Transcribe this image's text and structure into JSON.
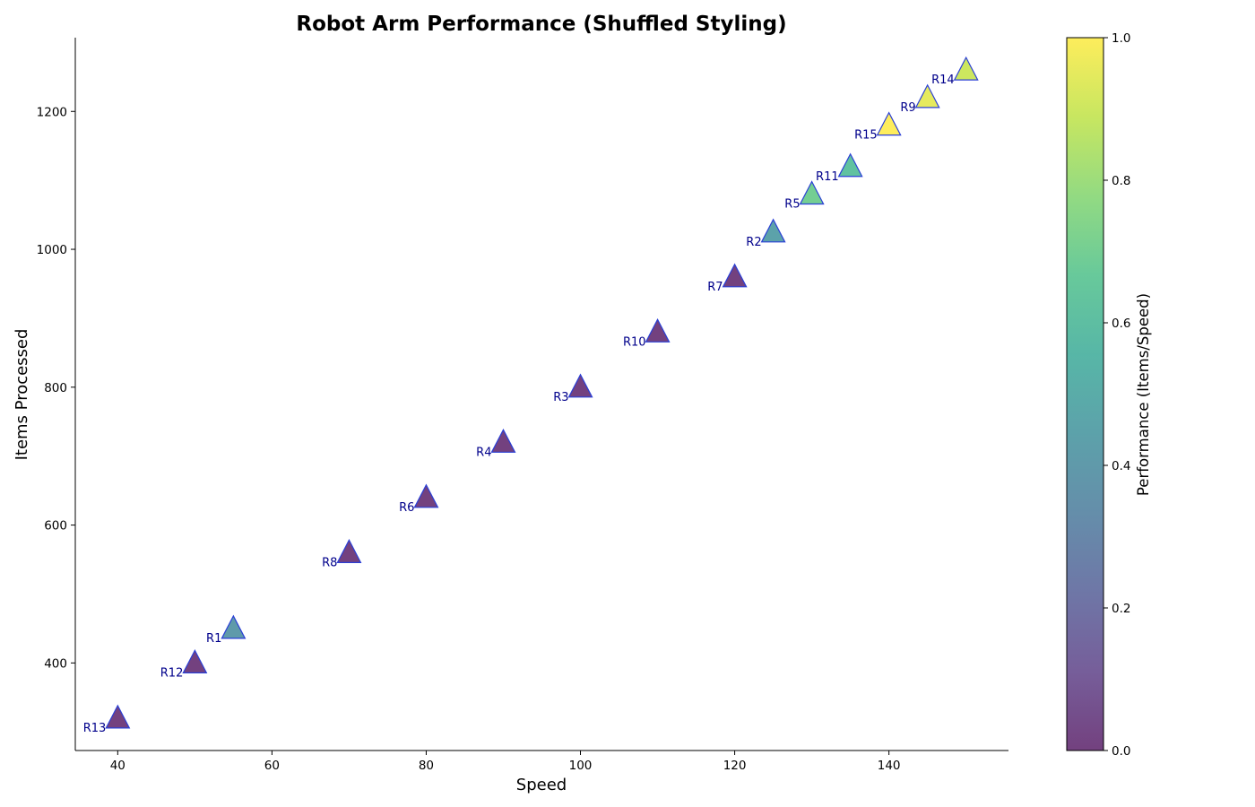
{
  "chart_data": {
    "type": "scatter",
    "title": "Robot Arm Performance (Shuffled Styling)",
    "xlabel": "Speed",
    "ylabel": "Items Processed",
    "xlim": [
      34.5,
      155.5
    ],
    "ylim": [
      273,
      1307
    ],
    "xticks": [
      "40",
      "60",
      "80",
      "100",
      "120",
      "140"
    ],
    "yticks": [
      "400",
      "600",
      "800",
      "1000",
      "1200"
    ],
    "marker": "triangle",
    "grid": false,
    "points": [
      {
        "label": "R1",
        "x": 55,
        "y": 450,
        "color_value": 0.4
      },
      {
        "label": "R2",
        "x": 125,
        "y": 1025,
        "color_value": 0.45
      },
      {
        "label": "R3",
        "x": 100,
        "y": 800,
        "color_value": 0.0
      },
      {
        "label": "R4",
        "x": 90,
        "y": 720,
        "color_value": 0.0
      },
      {
        "label": "R5",
        "x": 130,
        "y": 1080,
        "color_value": 0.7
      },
      {
        "label": "R6",
        "x": 80,
        "y": 640,
        "color_value": 0.0
      },
      {
        "label": "R7",
        "x": 120,
        "y": 960,
        "color_value": 0.0
      },
      {
        "label": "R8",
        "x": 70,
        "y": 560,
        "color_value": 0.0
      },
      {
        "label": "R9",
        "x": 145,
        "y": 1220,
        "color_value": 0.95
      },
      {
        "label": "R10",
        "x": 110,
        "y": 880,
        "color_value": 0.0
      },
      {
        "label": "R11",
        "x": 135,
        "y": 1120,
        "color_value": 0.62
      },
      {
        "label": "R12",
        "x": 50,
        "y": 400,
        "color_value": 0.0
      },
      {
        "label": "R13",
        "x": 40,
        "y": 320,
        "color_value": 0.0
      },
      {
        "label": "R14",
        "x": 150,
        "y": 1260,
        "color_value": 0.9
      },
      {
        "label": "R15",
        "x": 140,
        "y": 1180,
        "color_value": 1.0
      }
    ],
    "colorbar": {
      "label": "Performance (Items/Speed)",
      "range": [
        0.0,
        1.0
      ],
      "ticks": [
        "0.0",
        "0.2",
        "0.4",
        "0.6",
        "0.8",
        "1.0"
      ],
      "colormap": "viridis"
    },
    "colors": {
      "marker_edge": "#2a3fd6",
      "point_label": "#00008b",
      "viridis_stops": [
        "#440154",
        "#482878",
        "#3e4989",
        "#31688e",
        "#26828e",
        "#1f9e89",
        "#35b779",
        "#6ece58",
        "#b5de2b",
        "#fde725"
      ]
    }
  }
}
